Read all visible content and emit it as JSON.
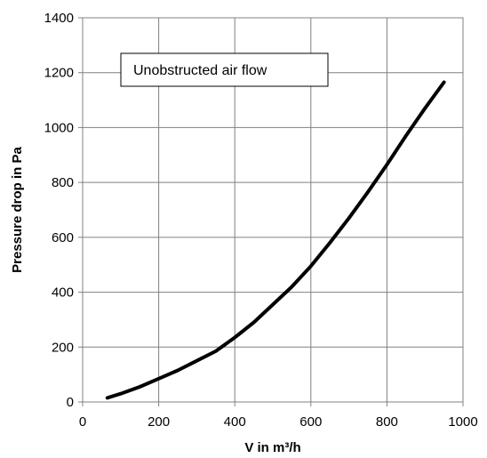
{
  "chart_data": {
    "type": "line",
    "title": "",
    "xlabel": "V in m³/h",
    "ylabel": "Pressure drop in Pa",
    "xlim": [
      0,
      1000
    ],
    "ylim": [
      0,
      1400
    ],
    "x_ticks": [
      "0",
      "200",
      "400",
      "600",
      "800",
      "1000"
    ],
    "y_ticks": [
      "0",
      "200",
      "400",
      "600",
      "800",
      "1000",
      "1200",
      "1400"
    ],
    "grid": true,
    "legend": "none",
    "annotations": [
      "Unobstructed air flow"
    ],
    "series": [
      {
        "color": "#000000",
        "x": [
          65,
          100,
          150,
          200,
          250,
          300,
          350,
          400,
          450,
          500,
          550,
          600,
          650,
          700,
          750,
          800,
          850,
          900,
          950
        ],
        "y": [
          15,
          30,
          55,
          85,
          115,
          150,
          185,
          235,
          290,
          355,
          420,
          495,
          580,
          670,
          765,
          865,
          970,
          1070,
          1165
        ]
      }
    ]
  }
}
